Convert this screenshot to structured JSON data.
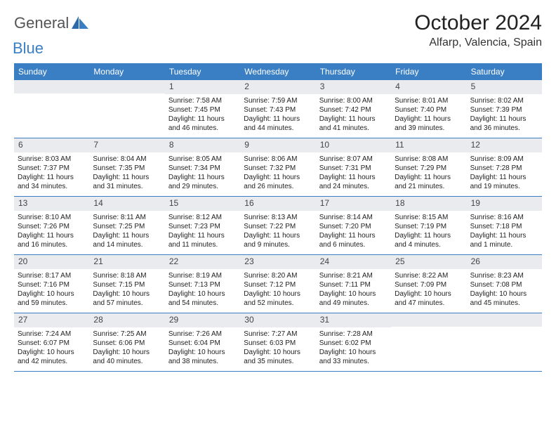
{
  "brand": {
    "text_general": "General",
    "text_blue": "Blue",
    "logo_fill": "#3a7fc4"
  },
  "header": {
    "month_title": "October 2024",
    "location": "Alfarp, Valencia, Spain"
  },
  "colors": {
    "header_row_bg": "#3a7fc4",
    "header_row_text": "#ffffff",
    "daynum_band_bg": "#e9ebee",
    "row_border": "#3a7fc4",
    "text": "#222222"
  },
  "day_names": [
    "Sunday",
    "Monday",
    "Tuesday",
    "Wednesday",
    "Thursday",
    "Friday",
    "Saturday"
  ],
  "weeks": [
    [
      {
        "num": "",
        "sunrise": "",
        "sunset": "",
        "daylight": ""
      },
      {
        "num": "",
        "sunrise": "",
        "sunset": "",
        "daylight": ""
      },
      {
        "num": "1",
        "sunrise": "Sunrise: 7:58 AM",
        "sunset": "Sunset: 7:45 PM",
        "daylight": "Daylight: 11 hours and 46 minutes."
      },
      {
        "num": "2",
        "sunrise": "Sunrise: 7:59 AM",
        "sunset": "Sunset: 7:43 PM",
        "daylight": "Daylight: 11 hours and 44 minutes."
      },
      {
        "num": "3",
        "sunrise": "Sunrise: 8:00 AM",
        "sunset": "Sunset: 7:42 PM",
        "daylight": "Daylight: 11 hours and 41 minutes."
      },
      {
        "num": "4",
        "sunrise": "Sunrise: 8:01 AM",
        "sunset": "Sunset: 7:40 PM",
        "daylight": "Daylight: 11 hours and 39 minutes."
      },
      {
        "num": "5",
        "sunrise": "Sunrise: 8:02 AM",
        "sunset": "Sunset: 7:39 PM",
        "daylight": "Daylight: 11 hours and 36 minutes."
      }
    ],
    [
      {
        "num": "6",
        "sunrise": "Sunrise: 8:03 AM",
        "sunset": "Sunset: 7:37 PM",
        "daylight": "Daylight: 11 hours and 34 minutes."
      },
      {
        "num": "7",
        "sunrise": "Sunrise: 8:04 AM",
        "sunset": "Sunset: 7:35 PM",
        "daylight": "Daylight: 11 hours and 31 minutes."
      },
      {
        "num": "8",
        "sunrise": "Sunrise: 8:05 AM",
        "sunset": "Sunset: 7:34 PM",
        "daylight": "Daylight: 11 hours and 29 minutes."
      },
      {
        "num": "9",
        "sunrise": "Sunrise: 8:06 AM",
        "sunset": "Sunset: 7:32 PM",
        "daylight": "Daylight: 11 hours and 26 minutes."
      },
      {
        "num": "10",
        "sunrise": "Sunrise: 8:07 AM",
        "sunset": "Sunset: 7:31 PM",
        "daylight": "Daylight: 11 hours and 24 minutes."
      },
      {
        "num": "11",
        "sunrise": "Sunrise: 8:08 AM",
        "sunset": "Sunset: 7:29 PM",
        "daylight": "Daylight: 11 hours and 21 minutes."
      },
      {
        "num": "12",
        "sunrise": "Sunrise: 8:09 AM",
        "sunset": "Sunset: 7:28 PM",
        "daylight": "Daylight: 11 hours and 19 minutes."
      }
    ],
    [
      {
        "num": "13",
        "sunrise": "Sunrise: 8:10 AM",
        "sunset": "Sunset: 7:26 PM",
        "daylight": "Daylight: 11 hours and 16 minutes."
      },
      {
        "num": "14",
        "sunrise": "Sunrise: 8:11 AM",
        "sunset": "Sunset: 7:25 PM",
        "daylight": "Daylight: 11 hours and 14 minutes."
      },
      {
        "num": "15",
        "sunrise": "Sunrise: 8:12 AM",
        "sunset": "Sunset: 7:23 PM",
        "daylight": "Daylight: 11 hours and 11 minutes."
      },
      {
        "num": "16",
        "sunrise": "Sunrise: 8:13 AM",
        "sunset": "Sunset: 7:22 PM",
        "daylight": "Daylight: 11 hours and 9 minutes."
      },
      {
        "num": "17",
        "sunrise": "Sunrise: 8:14 AM",
        "sunset": "Sunset: 7:20 PM",
        "daylight": "Daylight: 11 hours and 6 minutes."
      },
      {
        "num": "18",
        "sunrise": "Sunrise: 8:15 AM",
        "sunset": "Sunset: 7:19 PM",
        "daylight": "Daylight: 11 hours and 4 minutes."
      },
      {
        "num": "19",
        "sunrise": "Sunrise: 8:16 AM",
        "sunset": "Sunset: 7:18 PM",
        "daylight": "Daylight: 11 hours and 1 minute."
      }
    ],
    [
      {
        "num": "20",
        "sunrise": "Sunrise: 8:17 AM",
        "sunset": "Sunset: 7:16 PM",
        "daylight": "Daylight: 10 hours and 59 minutes."
      },
      {
        "num": "21",
        "sunrise": "Sunrise: 8:18 AM",
        "sunset": "Sunset: 7:15 PM",
        "daylight": "Daylight: 10 hours and 57 minutes."
      },
      {
        "num": "22",
        "sunrise": "Sunrise: 8:19 AM",
        "sunset": "Sunset: 7:13 PM",
        "daylight": "Daylight: 10 hours and 54 minutes."
      },
      {
        "num": "23",
        "sunrise": "Sunrise: 8:20 AM",
        "sunset": "Sunset: 7:12 PM",
        "daylight": "Daylight: 10 hours and 52 minutes."
      },
      {
        "num": "24",
        "sunrise": "Sunrise: 8:21 AM",
        "sunset": "Sunset: 7:11 PM",
        "daylight": "Daylight: 10 hours and 49 minutes."
      },
      {
        "num": "25",
        "sunrise": "Sunrise: 8:22 AM",
        "sunset": "Sunset: 7:09 PM",
        "daylight": "Daylight: 10 hours and 47 minutes."
      },
      {
        "num": "26",
        "sunrise": "Sunrise: 8:23 AM",
        "sunset": "Sunset: 7:08 PM",
        "daylight": "Daylight: 10 hours and 45 minutes."
      }
    ],
    [
      {
        "num": "27",
        "sunrise": "Sunrise: 7:24 AM",
        "sunset": "Sunset: 6:07 PM",
        "daylight": "Daylight: 10 hours and 42 minutes."
      },
      {
        "num": "28",
        "sunrise": "Sunrise: 7:25 AM",
        "sunset": "Sunset: 6:06 PM",
        "daylight": "Daylight: 10 hours and 40 minutes."
      },
      {
        "num": "29",
        "sunrise": "Sunrise: 7:26 AM",
        "sunset": "Sunset: 6:04 PM",
        "daylight": "Daylight: 10 hours and 38 minutes."
      },
      {
        "num": "30",
        "sunrise": "Sunrise: 7:27 AM",
        "sunset": "Sunset: 6:03 PM",
        "daylight": "Daylight: 10 hours and 35 minutes."
      },
      {
        "num": "31",
        "sunrise": "Sunrise: 7:28 AM",
        "sunset": "Sunset: 6:02 PM",
        "daylight": "Daylight: 10 hours and 33 minutes."
      },
      {
        "num": "",
        "sunrise": "",
        "sunset": "",
        "daylight": ""
      },
      {
        "num": "",
        "sunrise": "",
        "sunset": "",
        "daylight": ""
      }
    ]
  ]
}
